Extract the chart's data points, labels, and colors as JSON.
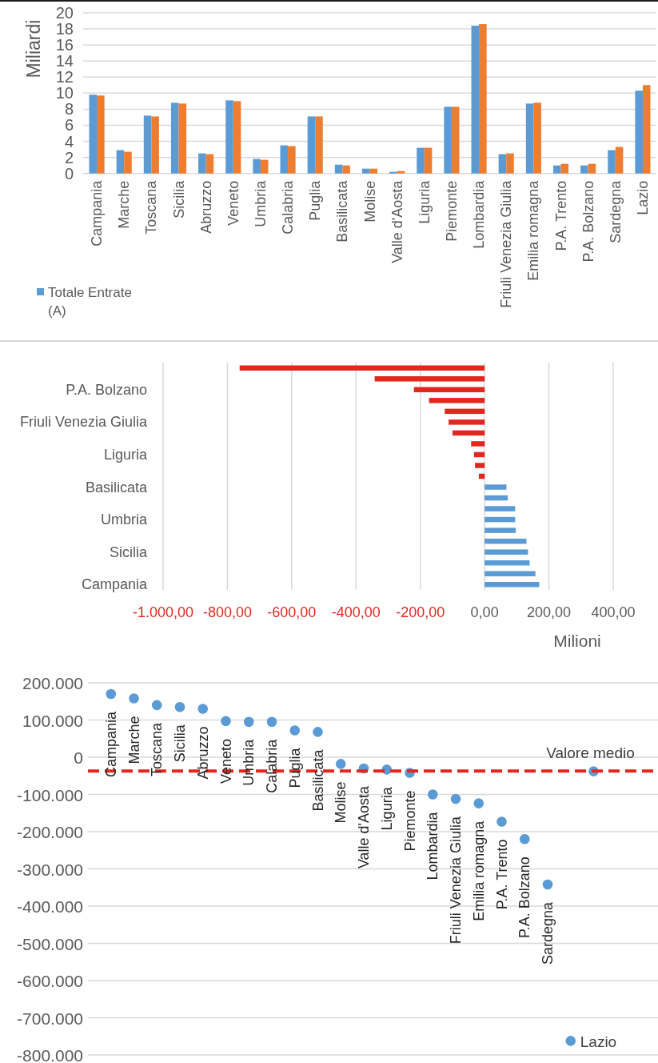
{
  "chart_data": [
    {
      "type": "bar",
      "ylabel": "Miliardi",
      "categories": [
        "Campania",
        "Marche",
        "Toscana",
        "Sicilia",
        "Abruzzo",
        "Veneto",
        "Umbria",
        "Calabria",
        "Puglia",
        "Basilicata",
        "Molise",
        "Valle d'Aosta",
        "Liguria",
        "Piemonte",
        "Lombardia",
        "Friuli Venezia Giulia",
        "Emilia romagna",
        "P.A. Trento",
        "P.A. Bolzano",
        "Sardegna",
        "Lazio"
      ],
      "series": [
        {
          "name": "Totale Entrate (A)",
          "color": "#5b9bd5",
          "values": [
            9.8,
            2.9,
            7.2,
            8.8,
            2.5,
            9.1,
            1.8,
            3.5,
            7.1,
            1.1,
            0.6,
            0.2,
            3.2,
            8.3,
            18.4,
            2.4,
            8.7,
            1.0,
            1.0,
            2.9,
            10.3
          ]
        },
        {
          "color": "#ed7d31",
          "values": [
            9.7,
            2.7,
            7.1,
            8.7,
            2.4,
            9.0,
            1.7,
            3.4,
            7.1,
            1.0,
            0.6,
            0.3,
            3.2,
            8.3,
            18.6,
            2.5,
            8.8,
            1.2,
            1.2,
            3.3,
            11.0
          ]
        }
      ],
      "ylim": [
        0,
        20
      ],
      "yticks": [
        0,
        2,
        4,
        6,
        8,
        10,
        12,
        14,
        16,
        18,
        20
      ],
      "grid": "y",
      "legend": "bottom left"
    },
    {
      "type": "bar",
      "orientation": "horizontal",
      "xlabel": "Milioni",
      "categories": [
        null,
        null,
        "P.A. Bolzano",
        null,
        null,
        "Friuli Venezia Giulia",
        null,
        null,
        "Liguria",
        null,
        null,
        "Basilicata",
        null,
        null,
        "Umbria",
        null,
        null,
        "Sicilia",
        null,
        null,
        "Campania"
      ],
      "values": [
        -762,
        -342,
        -220,
        -173,
        -124,
        -112,
        -100,
        -42,
        -33,
        -30,
        -18,
        68,
        72,
        95,
        95,
        97,
        130,
        135,
        140,
        158,
        170
      ],
      "colors": [
        "#e3271f",
        "#e3271f",
        "#e3271f",
        "#e3271f",
        "#e3271f",
        "#e3271f",
        "#e3271f",
        "#e3271f",
        "#e3271f",
        "#e3271f",
        "#e3271f",
        "#5b9bd5",
        "#5b9bd5",
        "#5b9bd5",
        "#5b9bd5",
        "#5b9bd5",
        "#5b9bd5",
        "#5b9bd5",
        "#5b9bd5",
        "#5b9bd5",
        "#5b9bd5"
      ],
      "xlim": [
        -1000,
        400
      ],
      "xticks": [
        {
          "value": -1000,
          "label": "-1.000,00"
        },
        {
          "value": -800,
          "label": "-800,00"
        },
        {
          "value": -600,
          "label": "-600,00"
        },
        {
          "value": -400,
          "label": "-400,00"
        },
        {
          "value": -200,
          "label": "-200,00"
        },
        {
          "value": 0,
          "label": "0,00"
        },
        {
          "value": 200,
          "label": "200,00"
        },
        {
          "value": 400,
          "label": "400,00"
        }
      ],
      "grid": "x"
    },
    {
      "type": "scatter",
      "categories": [
        "Campania",
        "Marche",
        "Toscana",
        "Sicilia",
        "Abruzzo",
        "Veneto",
        "Umbria",
        "Calabria",
        "Puglia",
        "Basilicata",
        "Molise",
        "Valle d'Aosta",
        "Liguria",
        "Piemonte",
        "Lombardia",
        "Friuli Venezia Giulia",
        "Emilia romagna",
        "P.A. Trento",
        "P.A. Bolzano",
        "Sardegna",
        null,
        null
      ],
      "series": [
        {
          "color": "#5b9bd5",
          "values": [
            170000,
            158000,
            140000,
            135000,
            130000,
            97000,
            95000,
            95000,
            72000,
            68000,
            -18000,
            -30000,
            -33000,
            -42000,
            -100000,
            -112000,
            -124000,
            -173000,
            -220000,
            -342000,
            null,
            null
          ]
        },
        {
          "name": "Lazio",
          "color": "#5b9bd5",
          "values": [
            null,
            null,
            null,
            null,
            null,
            null,
            null,
            null,
            null,
            null,
            null,
            null,
            null,
            null,
            null,
            null,
            null,
            null,
            null,
            null,
            -762000,
            null
          ]
        },
        {
          "name": "Valore medio",
          "color": "#5b9bd5",
          "values": [
            null,
            null,
            null,
            null,
            null,
            null,
            null,
            null,
            null,
            null,
            null,
            null,
            null,
            null,
            null,
            null,
            null,
            null,
            null,
            null,
            null,
            -38000
          ]
        }
      ],
      "ylim": [
        -800000,
        200000
      ],
      "yticks": [
        {
          "value": 200000,
          "label": "200.000"
        },
        {
          "value": 100000,
          "label": "100.000"
        },
        0,
        {
          "value": -100000,
          "label": "-100.000"
        },
        {
          "value": -200000,
          "label": "-200.000"
        },
        {
          "value": -300000,
          "label": "-300.000"
        },
        {
          "value": -400000,
          "label": "-400.000"
        },
        {
          "value": -500000,
          "label": "-500.000"
        },
        {
          "value": -600000,
          "label": "-600.000"
        },
        {
          "value": -700000,
          "label": "-700.000"
        },
        {
          "value": -800000,
          "label": "-800.000"
        }
      ],
      "grid": "y",
      "marker": "circle",
      "ref_lines": [
        {
          "axis": "y",
          "value": -37000,
          "color": "#e3271f",
          "line_style": "dashed"
        }
      ]
    }
  ]
}
